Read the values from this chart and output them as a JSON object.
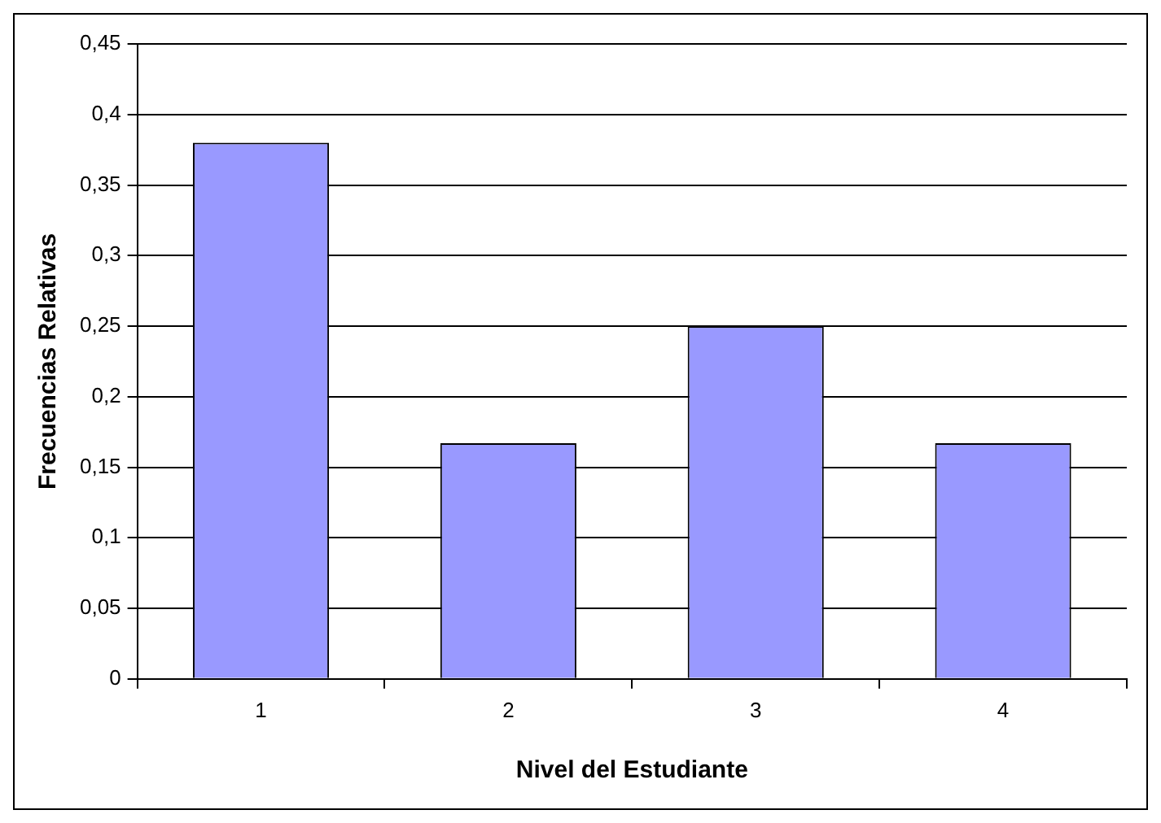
{
  "chart_data": {
    "type": "bar",
    "xlabel": "Nivel del Estudiante",
    "ylabel": "Frecuencias Relativas",
    "categories": [
      "1",
      "2",
      "3",
      "4"
    ],
    "values": [
      0.38,
      0.167,
      0.25,
      0.167
    ],
    "color": "#9999ff",
    "ylim": [
      0,
      0.45
    ],
    "yticks": [
      0,
      {
        "value": 0.05,
        "label": "0,05"
      },
      {
        "value": 0.1,
        "label": "0,1"
      },
      {
        "value": 0.15,
        "label": "0,15"
      },
      {
        "value": 0.2,
        "label": "0,2"
      },
      {
        "value": 0.25,
        "label": "0,25"
      },
      {
        "value": 0.3,
        "label": "0,3"
      },
      {
        "value": 0.35,
        "label": "0,35"
      },
      {
        "value": 0.4,
        "label": "0,4"
      },
      {
        "value": 0.45,
        "label": "0,45"
      }
    ],
    "grid": "y"
  }
}
